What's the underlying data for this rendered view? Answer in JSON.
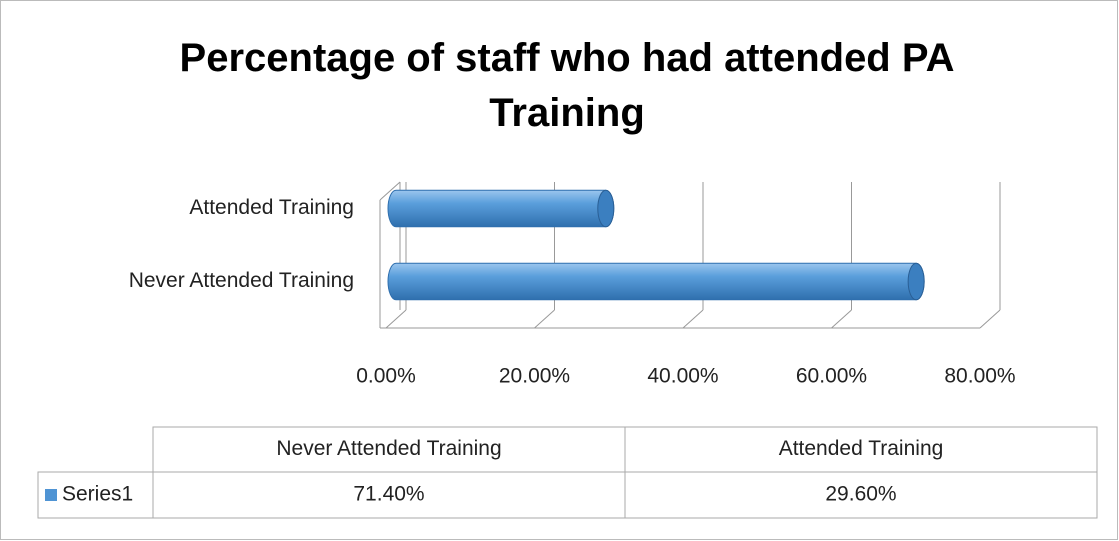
{
  "chart_data": {
    "type": "bar",
    "orientation": "horizontal",
    "title": "Percentage of staff who had attended PA Training",
    "categories": [
      "Never Attended Training",
      "Attended Training"
    ],
    "series": [
      {
        "name": "Series1",
        "color": "#4f94d4",
        "values": [
          71.4,
          29.6
        ],
        "value_labels": [
          "71.40%",
          "29.60%"
        ]
      }
    ],
    "xlim": [
      0,
      80
    ],
    "xticks": [
      {
        "value": 0,
        "label": "0.00%"
      },
      {
        "value": 20,
        "label": "20.00%"
      },
      {
        "value": 40,
        "label": "40.00%"
      },
      {
        "value": 60,
        "label": "60.00%"
      },
      {
        "value": 80,
        "label": "80.00%"
      }
    ],
    "grid": true,
    "data_table": true
  }
}
